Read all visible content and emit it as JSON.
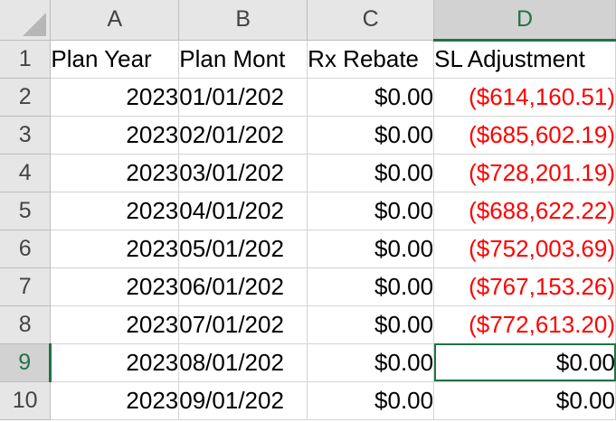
{
  "columns": [
    "A",
    "B",
    "C",
    "D"
  ],
  "active_column": "D",
  "active_row": "9",
  "selected_cell": "D9",
  "rows": [
    {
      "row": "1",
      "cells": [
        "Plan Year",
        "Plan Mont",
        "Rx Rebate",
        "SL Adjustment"
      ]
    },
    {
      "row": "2",
      "cells": [
        "2023",
        "01/01/202",
        "$0.00",
        "($614,160.51)"
      ]
    },
    {
      "row": "3",
      "cells": [
        "2023",
        "02/01/202",
        "$0.00",
        "($685,602.19)"
      ]
    },
    {
      "row": "4",
      "cells": [
        "2023",
        "03/01/202",
        "$0.00",
        "($728,201.19)"
      ]
    },
    {
      "row": "5",
      "cells": [
        "2023",
        "04/01/202",
        "$0.00",
        "($688,622.22)"
      ]
    },
    {
      "row": "6",
      "cells": [
        "2023",
        "05/01/202",
        "$0.00",
        "($752,003.69)"
      ]
    },
    {
      "row": "7",
      "cells": [
        "2023",
        "06/01/202",
        "$0.00",
        "($767,153.26)"
      ]
    },
    {
      "row": "8",
      "cells": [
        "2023",
        "07/01/202",
        "$0.00",
        "($772,613.20)"
      ]
    },
    {
      "row": "9",
      "cells": [
        "2023",
        "08/01/202",
        "$0.00",
        "$0.00"
      ]
    },
    {
      "row": "10",
      "cells": [
        "2023",
        "09/01/202",
        "$0.00",
        "$0.00"
      ]
    }
  ],
  "colors": {
    "negative": "#ff0000",
    "selection": "#217346",
    "header_bg": "#e6e6e6"
  }
}
